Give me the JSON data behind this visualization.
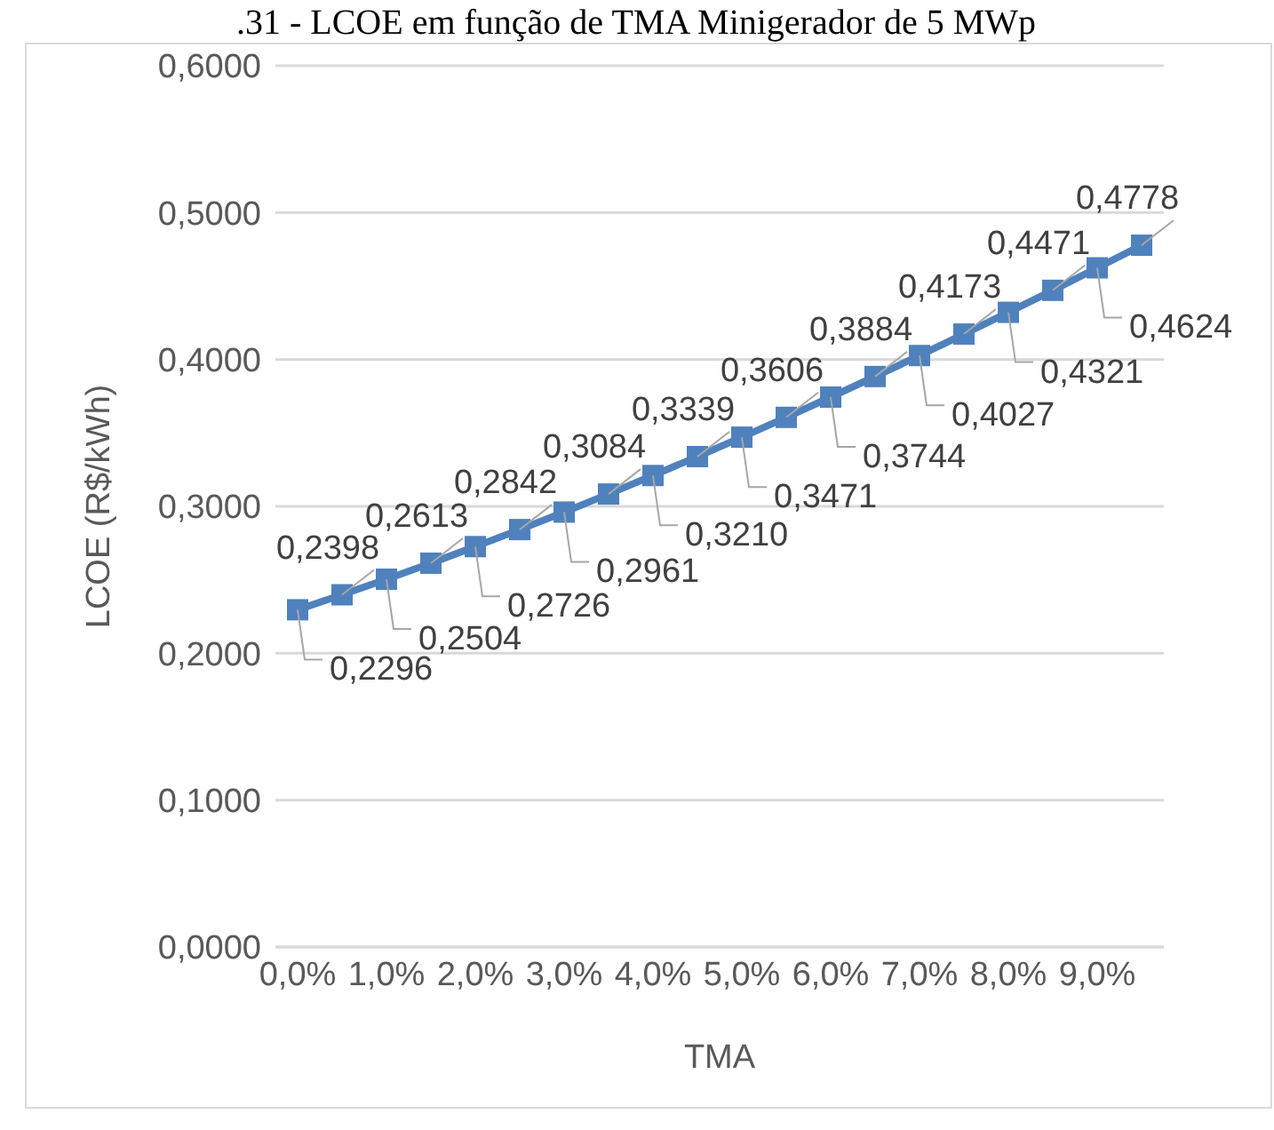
{
  "chart_data": {
    "type": "line",
    "title": ".31 - LCOE em função de TMA Minigerador de 5 MWp",
    "xlabel": "TMA",
    "ylabel": "LCOE (R$/kWh)",
    "x": [
      0,
      0.5,
      1,
      1.5,
      2,
      2.5,
      3,
      3.5,
      4,
      4.5,
      5,
      5.5,
      6,
      6.5,
      7,
      7.5,
      8,
      8.5,
      9,
      9.5
    ],
    "series": [
      {
        "color": "#4f81bd",
        "values": [
          0.2296,
          0.2398,
          0.2504,
          0.2613,
          0.2726,
          0.2842,
          0.2961,
          0.3084,
          0.321,
          0.3339,
          0.3471,
          0.3606,
          0.3744,
          0.3884,
          0.4027,
          0.4173,
          0.4321,
          0.4471,
          0.4624,
          0.4778
        ],
        "value_labels": [
          "0,2296",
          "0,2398",
          "0,2504",
          "0,2613",
          "0,2726",
          "0,2842",
          "0,2961",
          "0,3084",
          "0,3210",
          "0,3339",
          "0,3471",
          "0,3606",
          "0,3744",
          "0,3884",
          "0,4027",
          "0,4173",
          "0,4321",
          "0,4471",
          "0,4624",
          "0,4778"
        ]
      }
    ],
    "xlim": [
      -0.25,
      9.75
    ],
    "xticks": [
      {
        "value": 0,
        "label": "0,0%"
      },
      {
        "value": 1,
        "label": "1,0%"
      },
      {
        "value": 2,
        "label": "2,0%"
      },
      {
        "value": 3,
        "label": "3,0%"
      },
      {
        "value": 4,
        "label": "4,0%"
      },
      {
        "value": 5,
        "label": "5,0%"
      },
      {
        "value": 6,
        "label": "6,0%"
      },
      {
        "value": 7,
        "label": "7,0%"
      },
      {
        "value": 8,
        "label": "8,0%"
      },
      {
        "value": 9,
        "label": "9,0%"
      }
    ],
    "ylim": [
      0,
      0.6
    ],
    "yticks": [
      {
        "value": 0,
        "label": "0,0000"
      },
      {
        "value": 0.1,
        "label": "0,1000"
      },
      {
        "value": 0.2,
        "label": "0,2000"
      },
      {
        "value": 0.3,
        "label": "0,3000"
      },
      {
        "value": 0.4,
        "label": "0,4000"
      },
      {
        "value": 0.5,
        "label": "0,5000"
      },
      {
        "value": 0.6,
        "label": "0,6000"
      }
    ],
    "grid": "y",
    "legend": false,
    "marker": "square",
    "line_style": "solid"
  }
}
